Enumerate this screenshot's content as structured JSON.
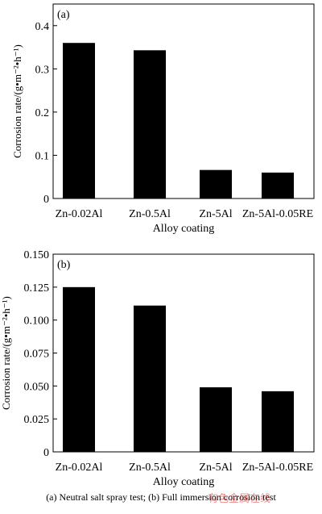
{
  "chart_data": [
    {
      "type": "bar",
      "panel_label": "(a)",
      "categories": [
        "Zn-0.02Al",
        "Zn-0.5Al",
        "Zn-5Al",
        "Zn-5Al-0.05RE"
      ],
      "values": [
        0.36,
        0.343,
        0.066,
        0.06
      ],
      "xlabel": "Alloy coating",
      "ylabel": "Corrosion rate/(g•m⁻²•h⁻¹)",
      "ylim": [
        0,
        0.45
      ],
      "yticks": [
        0,
        0.1,
        0.2,
        0.3,
        0.4
      ],
      "ytick_labels": [
        "0",
        "0.1",
        "0.2",
        "0.3",
        "0.4"
      ],
      "grid": false,
      "bar_color": "#000000"
    },
    {
      "type": "bar",
      "panel_label": "(b)",
      "categories": [
        "Zn-0.02Al",
        "Zn-0.5Al",
        "Zn-5Al",
        "Zn-5Al-0.05RE"
      ],
      "values": [
        0.125,
        0.111,
        0.049,
        0.046
      ],
      "xlabel": "Alloy coating",
      "ylabel": "Corrosion rate/(g•m⁻²•h⁻¹)",
      "ylim": [
        0,
        0.15
      ],
      "yticks": [
        0,
        0.025,
        0.05,
        0.075,
        0.1,
        0.125,
        0.15
      ],
      "ytick_labels": [
        "0",
        "0.025",
        "0.050",
        "0.075",
        "0.100",
        "0.125",
        "0.150"
      ],
      "grid": false,
      "bar_color": "#000000"
    }
  ],
  "caption": "(a) Neutral salt spray test; (b) Full immersion corrosion test",
  "watermark": "有色金属在线"
}
